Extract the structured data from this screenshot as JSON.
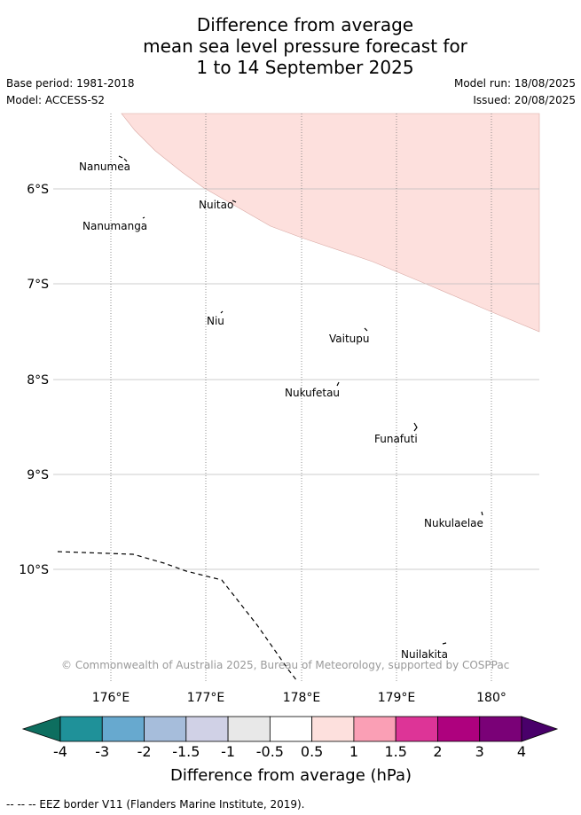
{
  "title": {
    "line1": "Difference from average",
    "line2": "mean sea level pressure forecast for",
    "line3": "1 to 14 September 2025"
  },
  "meta": {
    "base_period": "Base period: 1981-2018",
    "model": "Model: ACCESS-S2",
    "model_run": "Model run: 18/08/2025",
    "issued": "Issued: 20/08/2025"
  },
  "map": {
    "lat_labels": [
      "6°S",
      "7°S",
      "8°S",
      "9°S",
      "10°S"
    ],
    "lon_labels": [
      "176°E",
      "177°E",
      "178°E",
      "179°E",
      "180°"
    ],
    "places": [
      {
        "name": "Nanumea"
      },
      {
        "name": "Nuitao"
      },
      {
        "name": "Nanumanga"
      },
      {
        "name": "Niu"
      },
      {
        "name": "Vaitupu"
      },
      {
        "name": "Nukufetau"
      },
      {
        "name": "Funafuti"
      },
      {
        "name": "Nukulaelae"
      },
      {
        "name": "Nuilakita"
      }
    ],
    "copyright": "© Commonwealth of Australia 2025, Bureau of Meteorology, supported by COSPPac",
    "anomaly_region": {
      "range": "0.5 to 1",
      "color": "#fde0dd"
    }
  },
  "colorbar": {
    "label": "Difference from average (hPa)",
    "ticks": [
      "-4",
      "-3",
      "-2",
      "-1.5",
      "-1",
      "-0.5",
      "0.5",
      "1",
      "1.5",
      "2",
      "3",
      "4"
    ],
    "colors": [
      "#0d6e5f",
      "#1f9199",
      "#67a9cf",
      "#a6bddb",
      "#d0d1e6",
      "#e8e8e8",
      "#ffffff",
      "#fde0dd",
      "#fa9fb5",
      "#dd3497",
      "#ae017e",
      "#7a0177",
      "#49006a"
    ]
  },
  "footnote": "-- -- -- EEZ border V11 (Flanders Marine Institute, 2019)."
}
